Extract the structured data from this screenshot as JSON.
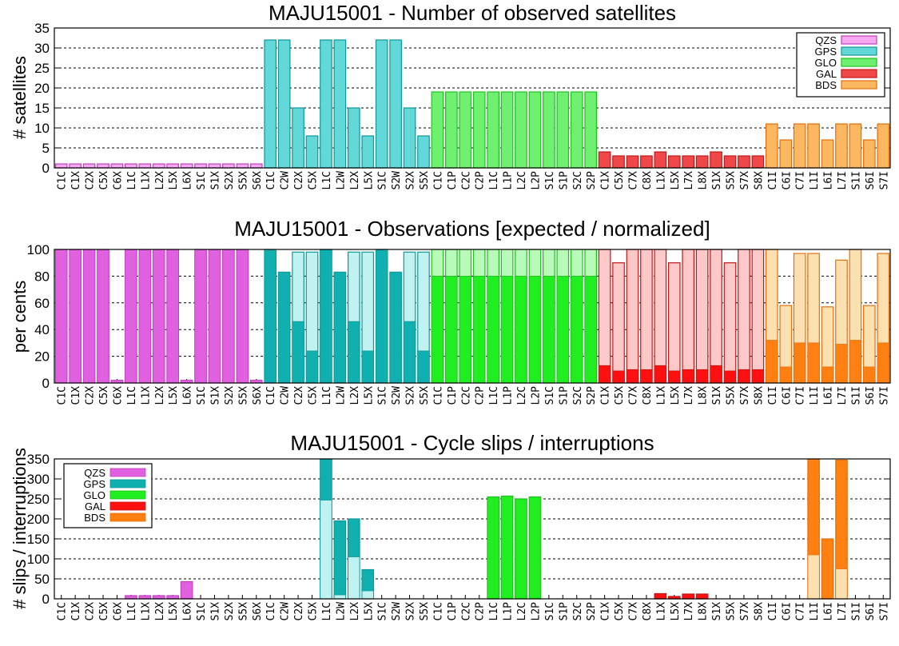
{
  "colors": {
    "QZS": {
      "fill": "#f5a8f0",
      "line": "#c040c0",
      "dark": "#e060e0",
      "light": "#f5a8f0"
    },
    "GPS": {
      "fill": "#62d8d8",
      "line": "#109898",
      "dark": "#10b0b0",
      "light": "#c0f2f2"
    },
    "GLO": {
      "fill": "#70f070",
      "line": "#20c020",
      "dark": "#20ee20",
      "light": "#b8fab8"
    },
    "GAL": {
      "fill": "#f04848",
      "line": "#c01818",
      "dark": "#ff1010",
      "light": "#fcc8c8"
    },
    "BDS": {
      "fill": "#fcb860",
      "line": "#e07010",
      "dark": "#ff8010",
      "light": "#fde0b0"
    }
  },
  "chart_data": [
    {
      "type": "bar",
      "title": "MAJU15001 - Number of observed satellites",
      "ylabel": "# satellites",
      "ylim": [
        0,
        35
      ],
      "yticks": [
        0,
        5,
        10,
        15,
        20,
        25,
        30,
        35
      ],
      "grid": true,
      "legend": {
        "position": "top-right",
        "entries": [
          "QZS",
          "GPS",
          "GLO",
          "GAL",
          "BDS"
        ]
      },
      "categories": [
        "C1C",
        "C1X",
        "C2X",
        "C5X",
        "C6X",
        "L1C",
        "L1X",
        "L2X",
        "L5X",
        "L6X",
        "S1C",
        "S1X",
        "S2X",
        "S5X",
        "S6X",
        "C1C",
        "C2W",
        "C2X",
        "C5X",
        "L1C",
        "L2W",
        "L2X",
        "L5X",
        "S1C",
        "S2W",
        "S2X",
        "S5X",
        "C1C",
        "C1P",
        "C2C",
        "C2P",
        "L1C",
        "L1P",
        "L2C",
        "L2P",
        "S1C",
        "S1P",
        "S2C",
        "S2P",
        "C1X",
        "C5X",
        "C7X",
        "C8X",
        "L1X",
        "L5X",
        "L7X",
        "L8X",
        "S1X",
        "S5X",
        "S7X",
        "S8X",
        "C1I",
        "C6I",
        "C7I",
        "L1I",
        "L6I",
        "L7I",
        "S1I",
        "S6I",
        "S7I"
      ],
      "systems": [
        "QZS",
        "QZS",
        "QZS",
        "QZS",
        "QZS",
        "QZS",
        "QZS",
        "QZS",
        "QZS",
        "QZS",
        "QZS",
        "QZS",
        "QZS",
        "QZS",
        "QZS",
        "GPS",
        "GPS",
        "GPS",
        "GPS",
        "GPS",
        "GPS",
        "GPS",
        "GPS",
        "GPS",
        "GPS",
        "GPS",
        "GPS",
        "GLO",
        "GLO",
        "GLO",
        "GLO",
        "GLO",
        "GLO",
        "GLO",
        "GLO",
        "GLO",
        "GLO",
        "GLO",
        "GLO",
        "GAL",
        "GAL",
        "GAL",
        "GAL",
        "GAL",
        "GAL",
        "GAL",
        "GAL",
        "GAL",
        "GAL",
        "GAL",
        "GAL",
        "BDS",
        "BDS",
        "BDS",
        "BDS",
        "BDS",
        "BDS",
        "BDS",
        "BDS",
        "BDS"
      ],
      "values": [
        1,
        1,
        1,
        1,
        1,
        1,
        1,
        1,
        1,
        1,
        1,
        1,
        1,
        1,
        1,
        32,
        32,
        15,
        8,
        32,
        32,
        15,
        8,
        32,
        32,
        15,
        8,
        19,
        19,
        19,
        19,
        19,
        19,
        19,
        19,
        19,
        19,
        19,
        19,
        4,
        3,
        3,
        3,
        4,
        3,
        3,
        3,
        4,
        3,
        3,
        3,
        11,
        7,
        11,
        11,
        7,
        11,
        11,
        7,
        11
      ]
    },
    {
      "type": "bar",
      "title": "MAJU15001 - Observations [expected / normalized]",
      "ylabel": "per cents",
      "ylim": [
        0,
        100
      ],
      "yticks": [
        0,
        20,
        40,
        60,
        80,
        100
      ],
      "grid": true,
      "categories": [
        "C1C",
        "C1X",
        "C2X",
        "C5X",
        "C6X",
        "L1C",
        "L1X",
        "L2X",
        "L5X",
        "L6X",
        "S1C",
        "S1X",
        "S2X",
        "S5X",
        "S6X",
        "C1C",
        "C2W",
        "C2X",
        "C5X",
        "L1C",
        "L2W",
        "L2X",
        "L5X",
        "S1C",
        "S2W",
        "S2X",
        "S5X",
        "C1C",
        "C1P",
        "C2C",
        "C2P",
        "L1C",
        "L1P",
        "L2C",
        "L2P",
        "S1C",
        "S1P",
        "S2C",
        "S2P",
        "C1X",
        "C5X",
        "C7X",
        "C8X",
        "L1X",
        "L5X",
        "L7X",
        "L8X",
        "S1X",
        "S5X",
        "S7X",
        "S8X",
        "C1I",
        "C6I",
        "C7I",
        "L1I",
        "L6I",
        "L7I",
        "S1I",
        "S6I",
        "S7I"
      ],
      "series": [
        {
          "role": "expected",
          "values": [
            100,
            100,
            100,
            100,
            2,
            100,
            100,
            100,
            100,
            2,
            100,
            100,
            100,
            100,
            2,
            100,
            83,
            98,
            98,
            100,
            83,
            98,
            98,
            100,
            83,
            98,
            98,
            100,
            100,
            100,
            100,
            100,
            100,
            100,
            100,
            100,
            100,
            100,
            100,
            100,
            90,
            100,
            100,
            100,
            90,
            100,
            100,
            100,
            90,
            100,
            100,
            100,
            58,
            97,
            97,
            57,
            92,
            100,
            58,
            97
          ]
        },
        {
          "role": "normalized",
          "values": [
            100,
            100,
            100,
            100,
            2,
            100,
            100,
            100,
            100,
            2,
            100,
            100,
            100,
            100,
            2,
            100,
            83,
            46,
            24,
            100,
            83,
            46,
            24,
            100,
            83,
            46,
            24,
            80,
            80,
            80,
            80,
            80,
            80,
            80,
            80,
            80,
            80,
            80,
            80,
            13,
            9,
            10,
            10,
            13,
            9,
            10,
            10,
            13,
            9,
            10,
            10,
            32,
            12,
            30,
            30,
            12,
            29,
            32,
            12,
            30
          ]
        }
      ]
    },
    {
      "type": "bar",
      "title": "MAJU15001 - Cycle slips / interruptions",
      "ylabel": "# slips / interruptions",
      "ylim": [
        0,
        350
      ],
      "yticks": [
        0,
        50,
        100,
        150,
        200,
        250,
        300,
        350
      ],
      "grid": true,
      "legend": {
        "position": "top-left",
        "entries": [
          "QZS",
          "GPS",
          "GLO",
          "GAL",
          "BDS"
        ]
      },
      "categories": [
        "C1C",
        "C1X",
        "C2X",
        "C5X",
        "C6X",
        "L1C",
        "L1X",
        "L2X",
        "L5X",
        "L6X",
        "S1C",
        "S1X",
        "S2X",
        "S5X",
        "S6X",
        "C1C",
        "C2W",
        "C2X",
        "C5X",
        "L1C",
        "L2W",
        "L2X",
        "L5X",
        "S1C",
        "S2W",
        "S2X",
        "S5X",
        "C1C",
        "C1P",
        "C2C",
        "C2P",
        "L1C",
        "L1P",
        "L2C",
        "L2P",
        "S1C",
        "S1P",
        "S2C",
        "S2P",
        "C1X",
        "C5X",
        "C7X",
        "C8X",
        "L1X",
        "L5X",
        "L7X",
        "L8X",
        "S1X",
        "S5X",
        "S7X",
        "S8X",
        "C1I",
        "C6I",
        "C7I",
        "L1I",
        "L6I",
        "L7I",
        "S1I",
        "S6I",
        "S7I"
      ],
      "series": [
        {
          "role": "total",
          "values": [
            0,
            0,
            0,
            0,
            0,
            8,
            8,
            8,
            8,
            43,
            0,
            0,
            0,
            0,
            0,
            0,
            0,
            0,
            0,
            360,
            195,
            200,
            73,
            0,
            0,
            0,
            0,
            0,
            0,
            0,
            0,
            255,
            257,
            250,
            255,
            0,
            0,
            0,
            0,
            0,
            0,
            0,
            0,
            13,
            6,
            12,
            12,
            0,
            0,
            0,
            0,
            0,
            0,
            0,
            360,
            150,
            347,
            0,
            0,
            0
          ]
        },
        {
          "role": "slips",
          "values": [
            0,
            0,
            0,
            0,
            0,
            0,
            0,
            0,
            0,
            0,
            0,
            0,
            0,
            0,
            0,
            0,
            0,
            0,
            0,
            247,
            10,
            105,
            20,
            0,
            0,
            0,
            0,
            0,
            0,
            0,
            0,
            0,
            0,
            0,
            0,
            0,
            0,
            0,
            0,
            0,
            0,
            0,
            0,
            0,
            0,
            0,
            0,
            0,
            0,
            0,
            0,
            0,
            0,
            0,
            110,
            0,
            75,
            0,
            0,
            0
          ]
        }
      ]
    }
  ]
}
